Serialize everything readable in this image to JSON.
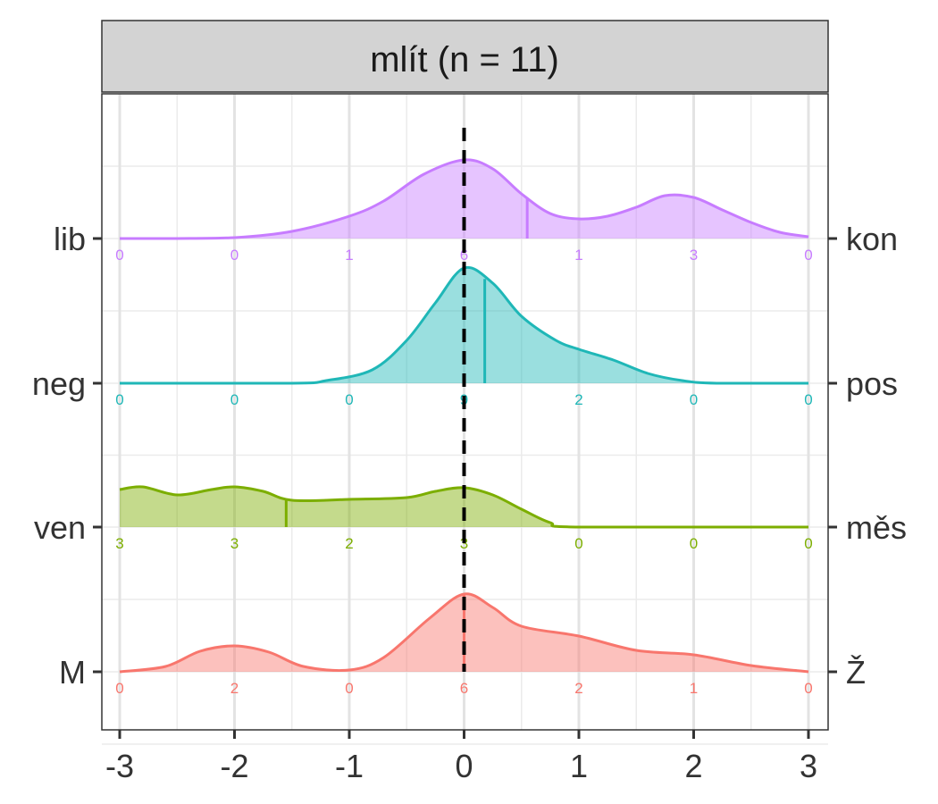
{
  "strip_title": "mlít (n = 11)",
  "chart_data": {
    "type": "ridgeline",
    "x_ticks": [
      -3,
      -2,
      -1,
      0,
      1,
      2,
      3
    ],
    "xlim": [
      -3,
      3
    ],
    "reference_line": 0,
    "grid": true,
    "rows": [
      {
        "left": "lib",
        "right": "kon",
        "color": "#C77CFF",
        "mean": 0.55,
        "counts": [
          0,
          0,
          1,
          6,
          1,
          3,
          0
        ],
        "density": [
          [
            -3,
            0
          ],
          [
            -2.5,
            0
          ],
          [
            -2,
            0.01
          ],
          [
            -1.5,
            0.08
          ],
          [
            -1,
            0.25
          ],
          [
            -0.7,
            0.42
          ],
          [
            -0.35,
            0.72
          ],
          [
            0,
            0.88
          ],
          [
            0.25,
            0.78
          ],
          [
            0.5,
            0.5
          ],
          [
            0.75,
            0.28
          ],
          [
            1,
            0.22
          ],
          [
            1.25,
            0.25
          ],
          [
            1.5,
            0.35
          ],
          [
            1.75,
            0.48
          ],
          [
            2,
            0.46
          ],
          [
            2.25,
            0.32
          ],
          [
            2.5,
            0.18
          ],
          [
            2.75,
            0.07
          ],
          [
            3,
            0.02
          ]
        ]
      },
      {
        "left": "neg",
        "right": "pos",
        "color": "#1FB7B7",
        "mean": 0.18,
        "counts": [
          0,
          0,
          0,
          9,
          2,
          0,
          0
        ],
        "density": [
          [
            -3,
            0
          ],
          [
            -1.5,
            0
          ],
          [
            -1.2,
            0.03
          ],
          [
            -0.8,
            0.15
          ],
          [
            -0.5,
            0.48
          ],
          [
            -0.25,
            0.9
          ],
          [
            0,
            1.29
          ],
          [
            0.25,
            1.12
          ],
          [
            0.5,
            0.75
          ],
          [
            0.8,
            0.48
          ],
          [
            1,
            0.38
          ],
          [
            1.3,
            0.26
          ],
          [
            1.6,
            0.11
          ],
          [
            1.9,
            0.03
          ],
          [
            2.2,
            0
          ],
          [
            3,
            0
          ]
        ]
      },
      {
        "left": "ven",
        "right": "měs",
        "color": "#7CAE00",
        "mean": -1.55,
        "counts": [
          3,
          3,
          2,
          3,
          0,
          0,
          0
        ],
        "density": [
          [
            -3,
            0.42
          ],
          [
            -2.8,
            0.45
          ],
          [
            -2.5,
            0.36
          ],
          [
            -2.2,
            0.42
          ],
          [
            -2,
            0.45
          ],
          [
            -1.75,
            0.4
          ],
          [
            -1.5,
            0.3
          ],
          [
            -1,
            0.31
          ],
          [
            -0.5,
            0.33
          ],
          [
            -0.25,
            0.4
          ],
          [
            0,
            0.44
          ],
          [
            0.25,
            0.36
          ],
          [
            0.5,
            0.2
          ],
          [
            0.75,
            0.05
          ],
          [
            1,
            0
          ],
          [
            3,
            0
          ]
        ]
      },
      {
        "left": "M",
        "right": "Ž",
        "color": "#F8766D",
        "mean": 0,
        "counts": [
          0,
          2,
          0,
          6,
          2,
          1,
          0
        ],
        "density": [
          [
            -3,
            0
          ],
          [
            -2.6,
            0.06
          ],
          [
            -2.3,
            0.23
          ],
          [
            -2,
            0.29
          ],
          [
            -1.7,
            0.22
          ],
          [
            -1.4,
            0.06
          ],
          [
            -1,
            0.02
          ],
          [
            -0.7,
            0.16
          ],
          [
            -0.3,
            0.6
          ],
          [
            0,
            0.87
          ],
          [
            0.25,
            0.72
          ],
          [
            0.5,
            0.51
          ],
          [
            1,
            0.4
          ],
          [
            1.5,
            0.24
          ],
          [
            2,
            0.19
          ],
          [
            2.5,
            0.07
          ],
          [
            3,
            0
          ]
        ]
      }
    ]
  }
}
